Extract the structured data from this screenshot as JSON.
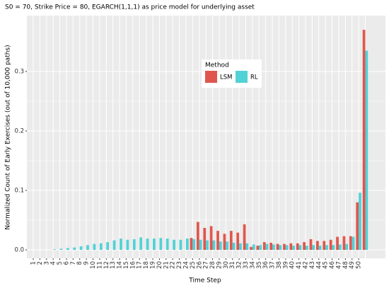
{
  "chart_data": {
    "type": "bar",
    "title": "S0 = 70, Strike Price = 80, EGARCH(1,1,1) as price model for underlying asset",
    "x_label": "Time Step",
    "y_label": "Normalized Count of Early Exercises (out of 10,000 paths)",
    "legend_title": "Method",
    "categories": [
      "1",
      "2",
      "3",
      "4",
      "5",
      "6",
      "7",
      "8",
      "9",
      "10",
      "11",
      "12",
      "13",
      "14",
      "15",
      "16",
      "17",
      "18",
      "19",
      "20",
      "21",
      "22",
      "23",
      "24",
      "25",
      "26",
      "27",
      "28",
      "29",
      "30",
      "31",
      "32",
      "33",
      "34",
      "35",
      "36",
      "37",
      "38",
      "39",
      "40",
      "41",
      "42",
      "43",
      "44",
      "45",
      "46",
      "47",
      "48",
      "49",
      "50",
      null
    ],
    "series": [
      {
        "name": "LSM",
        "color": "#E0564E",
        "values": [
          0,
          0,
          0,
          0,
          0,
          0,
          0,
          0,
          0,
          0,
          0,
          0,
          0,
          0,
          0,
          0,
          0,
          0,
          0,
          0,
          0,
          0,
          0,
          0,
          0.02,
          0.047,
          0.037,
          0.04,
          0.032,
          0.027,
          0.032,
          0.029,
          0.043,
          0.005,
          0.007,
          0.013,
          0.012,
          0.01,
          0.01,
          0.011,
          0.011,
          0.013,
          0.018,
          0.015,
          0.015,
          0.017,
          0.022,
          0.023,
          0.023,
          0.08,
          0.37
        ]
      },
      {
        "name": "RL",
        "color": "#52D1D6",
        "values": [
          0,
          0,
          0,
          0.001,
          0.002,
          0.003,
          0.004,
          0.006,
          0.008,
          0.01,
          0.011,
          0.013,
          0.016,
          0.019,
          0.017,
          0.018,
          0.021,
          0.019,
          0.019,
          0.02,
          0.019,
          0.017,
          0.017,
          0.019,
          0.018,
          0.017,
          0.016,
          0.016,
          0.014,
          0.014,
          0.012,
          0.011,
          0.011,
          0.009,
          0.008,
          0.01,
          0.009,
          0.008,
          0.008,
          0.007,
          0.008,
          0.007,
          0.008,
          0.007,
          0.008,
          0.008,
          0.009,
          0.01,
          0.022,
          0.096,
          0.335
        ]
      }
    ],
    "ylim": [
      -0.0143,
      0.394
    ],
    "yticks": [
      {
        "value": 0,
        "label": "0.0"
      },
      0.1,
      0.2,
      0.3
    ],
    "grid": true
  }
}
